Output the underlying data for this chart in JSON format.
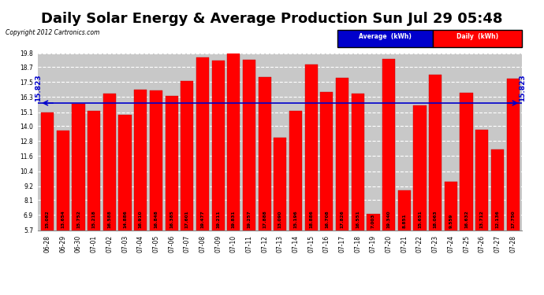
{
  "title": "Daily Solar Energy & Average Production Sun Jul 29 05:48",
  "copyright": "Copyright 2012 Cartronics.com",
  "categories": [
    "06-28",
    "06-29",
    "06-30",
    "07-01",
    "07-02",
    "07-03",
    "07-04",
    "07-05",
    "07-06",
    "07-07",
    "07-08",
    "07-09",
    "07-10",
    "07-11",
    "07-12",
    "07-13",
    "07-14",
    "07-15",
    "07-16",
    "07-17",
    "07-18",
    "07-19",
    "07-20",
    "07-21",
    "07-22",
    "07-23",
    "07-24",
    "07-25",
    "07-26",
    "07-27",
    "07-28"
  ],
  "values": [
    15.082,
    13.654,
    15.752,
    15.218,
    16.588,
    14.886,
    16.91,
    16.848,
    16.385,
    17.601,
    19.477,
    19.211,
    19.831,
    19.257,
    17.888,
    13.09,
    15.196,
    18.886,
    16.708,
    17.826,
    16.551,
    7.003,
    19.34,
    8.851,
    15.651,
    18.063,
    9.559,
    16.632,
    13.712,
    12.136,
    17.75
  ],
  "average": 15.823,
  "bar_color": "#ff0000",
  "avg_line_color": "#0000cc",
  "background_color": "#ffffff",
  "plot_bg_color": "#c8c8c8",
  "ylim_min": 5.7,
  "ylim_max": 19.8,
  "yticks": [
    5.7,
    6.9,
    8.1,
    9.2,
    10.4,
    11.6,
    12.8,
    14.0,
    15.1,
    16.3,
    17.5,
    18.7,
    19.8
  ],
  "title_fontsize": 13,
  "avg_label": "15.823",
  "legend_avg_color": "#0000cc",
  "legend_daily_color": "#ff0000",
  "grid_color": "#ffffff",
  "grid_style": "--"
}
